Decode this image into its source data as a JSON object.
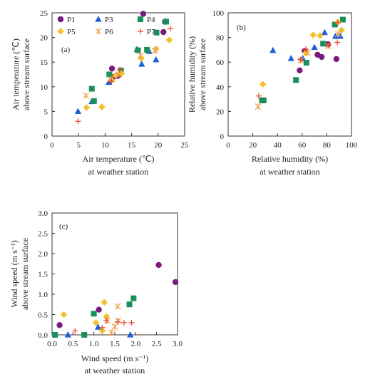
{
  "colors": {
    "P1": "#7b1a7b",
    "P3": "#1f5fd8",
    "P4": "#1a8f5a",
    "P5": "#f2c12e",
    "P6": "#f0a04a",
    "P7": "#e8412c"
  },
  "legend": [
    {
      "key": "P1",
      "label": "P1",
      "shape": "circle"
    },
    {
      "key": "P3",
      "label": "P3",
      "shape": "triangle"
    },
    {
      "key": "P4",
      "label": "P4",
      "shape": "square"
    },
    {
      "key": "P5",
      "label": "P5",
      "shape": "diamond"
    },
    {
      "key": "P6",
      "label": "P6",
      "shape": "asterisk"
    },
    {
      "key": "P7",
      "label": "P7",
      "shape": "plus"
    }
  ],
  "chart_data": [
    {
      "type": "scatter",
      "panel_label": "(a)",
      "xlabel": [
        "Air temperature (℃)",
        "at weather station"
      ],
      "ylabel": [
        "Air temperature (℃)",
        "above stream surface"
      ],
      "xlim": [
        0,
        25
      ],
      "ylim": [
        0,
        25
      ],
      "xticks": [
        0,
        5,
        10,
        15,
        20,
        25
      ],
      "yticks": [
        0,
        5,
        10,
        15,
        20,
        25
      ],
      "xtick_labels": [
        "0",
        "5",
        "10",
        "15",
        "20",
        "25"
      ],
      "ytick_labels": [
        "0",
        "5",
        "10",
        "15",
        "20",
        "25"
      ],
      "series": [
        {
          "key": "P1",
          "shape": "circle",
          "points": [
            [
              17.2,
              24.8
            ],
            [
              11.3,
              13.7
            ],
            [
              11.6,
              12.0
            ],
            [
              21.0,
              21.1
            ],
            [
              21.3,
              23.2
            ],
            [
              12.4,
              12.2
            ]
          ]
        },
        {
          "key": "P3",
          "shape": "triangle",
          "points": [
            [
              4.9,
              5.0
            ],
            [
              7.5,
              7.0
            ],
            [
              10.7,
              10.9
            ],
            [
              16.0,
              17.6
            ],
            [
              16.9,
              14.6
            ],
            [
              18.3,
              17.2
            ],
            [
              19.6,
              15.5
            ],
            [
              21.3,
              23.3
            ]
          ]
        },
        {
          "key": "P4",
          "shape": "square",
          "points": [
            [
              7.5,
              9.6
            ],
            [
              7.9,
              7.1
            ],
            [
              10.8,
              12.5
            ],
            [
              13.0,
              13.3
            ],
            [
              16.2,
              17.4
            ],
            [
              17.9,
              17.5
            ],
            [
              19.7,
              21.0
            ],
            [
              21.5,
              23.2
            ]
          ]
        },
        {
          "key": "P5",
          "shape": "diamond",
          "points": [
            [
              6.5,
              5.8
            ],
            [
              9.4,
              5.9
            ],
            [
              11.3,
              11.3
            ],
            [
              12.0,
              12.3
            ],
            [
              13.1,
              12.7
            ],
            [
              16.8,
              15.8
            ],
            [
              19.6,
              17.7
            ],
            [
              22.1,
              19.5
            ]
          ]
        },
        {
          "key": "P6",
          "shape": "asterisk",
          "points": [
            [
              6.4,
              8.2
            ],
            [
              11.0,
              11.6
            ],
            [
              12.6,
              12.5
            ],
            [
              16.7,
              16.4
            ],
            [
              19.4,
              17.3
            ]
          ]
        },
        {
          "key": "P7",
          "shape": "plus",
          "points": [
            [
              4.9,
              3.0
            ],
            [
              11.2,
              11.1
            ],
            [
              12.8,
              13.5
            ],
            [
              22.3,
              21.8
            ]
          ]
        }
      ]
    },
    {
      "type": "scatter",
      "panel_label": "(b)",
      "xlabel": [
        "Relative humidity (%)",
        "at weather station"
      ],
      "ylabel": [
        "Relative humidity  (%)",
        "above stream surface"
      ],
      "xlim": [
        0,
        100
      ],
      "ylim": [
        0,
        100
      ],
      "xticks": [
        0,
        20,
        40,
        60,
        80,
        100
      ],
      "yticks": [
        0,
        20,
        40,
        60,
        80,
        100
      ],
      "xtick_labels": [
        "0",
        "20",
        "40",
        "60",
        "80",
        "100"
      ],
      "ytick_labels": [
        "0",
        "20",
        "40",
        "60",
        "80",
        "100"
      ],
      "series": [
        {
          "key": "P1",
          "shape": "circle",
          "points": [
            [
              58.0,
              53.3
            ],
            [
              62.0,
              69.0
            ],
            [
              72.5,
              66.0
            ],
            [
              75.8,
              64.2
            ],
            [
              81.0,
              74.5
            ],
            [
              87.8,
              62.5
            ]
          ]
        },
        {
          "key": "P3",
          "shape": "triangle",
          "points": [
            [
              36.3,
              69.5
            ],
            [
              51.0,
              63.0
            ],
            [
              60.5,
              63.0
            ],
            [
              70.0,
              72.0
            ],
            [
              78.2,
              84.0
            ],
            [
              87.0,
              81.0
            ],
            [
              91.0,
              81.0
            ]
          ]
        },
        {
          "key": "P4",
          "shape": "square",
          "points": [
            [
              27.5,
              29.0
            ],
            [
              28.8,
              29.0
            ],
            [
              55.0,
              45.5
            ],
            [
              63.5,
              59.5
            ],
            [
              77.0,
              75.0
            ],
            [
              86.5,
              90.5
            ],
            [
              93.0,
              94.5
            ]
          ]
        },
        {
          "key": "P5",
          "shape": "diamond",
          "points": [
            [
              28.2,
              42.0
            ],
            [
              62.8,
              67.5
            ],
            [
              69.0,
              82.0
            ],
            [
              74.5,
              81.5
            ],
            [
              89.0,
              92.5
            ],
            [
              92.0,
              86.0
            ]
          ]
        },
        {
          "key": "P6",
          "shape": "asterisk",
          "points": [
            [
              24.3,
              24.0
            ],
            [
              59.0,
              61.5
            ],
            [
              64.5,
              67.5
            ],
            [
              81.0,
              73.0
            ],
            [
              89.2,
              83.0
            ]
          ]
        },
        {
          "key": "P7",
          "shape": "plus",
          "points": [
            [
              24.8,
              32.5
            ],
            [
              58.5,
              62.0
            ],
            [
              63.0,
              70.5
            ],
            [
              81.5,
              74.0
            ],
            [
              88.5,
              76.0
            ],
            [
              89.0,
              92.0
            ]
          ]
        }
      ]
    },
    {
      "type": "scatter",
      "panel_label": "(c)",
      "xlabel": [
        "Wind speed (m s⁻¹)",
        "at weather station"
      ],
      "ylabel": [
        "Wind speed  (m s⁻¹)",
        "above stream surface"
      ],
      "xlim": [
        0,
        3
      ],
      "ylim": [
        0,
        3
      ],
      "xticks": [
        0,
        0.5,
        1.0,
        1.5,
        2.0,
        2.5,
        3.0
      ],
      "yticks": [
        0,
        0.5,
        1.0,
        1.5,
        2.0,
        2.5,
        3.0
      ],
      "xtick_labels": [
        "0.0",
        "0.5",
        "1.0",
        "1.5",
        "2.0",
        "2.5",
        "3.0"
      ],
      "ytick_labels": [
        "0.0",
        "0.5",
        "1.0",
        "1.5",
        "2.0",
        "2.5",
        "3.0"
      ],
      "series": [
        {
          "key": "P1",
          "shape": "circle",
          "points": [
            [
              0.18,
              0.24
            ],
            [
              1.12,
              0.62
            ],
            [
              2.55,
              1.72
            ],
            [
              2.95,
              1.3
            ]
          ]
        },
        {
          "key": "P3",
          "shape": "triangle",
          "points": [
            [
              0.38,
              0.0
            ],
            [
              1.1,
              0.19
            ],
            [
              1.87,
              0.0
            ]
          ]
        },
        {
          "key": "P4",
          "shape": "square",
          "points": [
            [
              0.07,
              0.0
            ],
            [
              0.77,
              0.0
            ],
            [
              1.0,
              0.52
            ],
            [
              1.85,
              0.75
            ],
            [
              1.95,
              0.9
            ]
          ]
        },
        {
          "key": "P5",
          "shape": "diamond",
          "points": [
            [
              0.28,
              0.5
            ],
            [
              1.05,
              0.3
            ],
            [
              1.2,
              0.1
            ],
            [
              1.25,
              0.8
            ],
            [
              1.3,
              0.45
            ]
          ]
        },
        {
          "key": "P6",
          "shape": "asterisk",
          "points": [
            [
              1.32,
              0.35
            ],
            [
              1.42,
              0.05
            ],
            [
              1.5,
              0.2
            ],
            [
              1.57,
              0.7
            ],
            [
              1.58,
              0.35
            ]
          ]
        },
        {
          "key": "P7",
          "shape": "plus",
          "points": [
            [
              0.55,
              0.1
            ],
            [
              1.2,
              0.18
            ],
            [
              1.3,
              0.35
            ],
            [
              1.57,
              0.32
            ],
            [
              1.72,
              0.3
            ],
            [
              1.9,
              0.3
            ]
          ]
        }
      ]
    }
  ]
}
